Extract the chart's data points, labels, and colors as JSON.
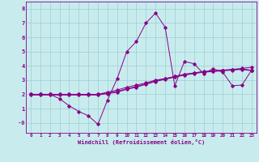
{
  "xlabel": "Windchill (Refroidissement éolien,°C)",
  "bg_color": "#c8ecee",
  "grid_color": "#9ecdd2",
  "line_color": "#880088",
  "xlim": [
    -0.5,
    23.5
  ],
  "ylim": [
    -0.7,
    8.5
  ],
  "xticks": [
    0,
    1,
    2,
    3,
    4,
    5,
    6,
    7,
    8,
    9,
    10,
    11,
    12,
    13,
    14,
    15,
    16,
    17,
    18,
    19,
    20,
    21,
    22,
    23
  ],
  "yticks": [
    0,
    1,
    2,
    3,
    4,
    5,
    6,
    7,
    8
  ],
  "ytick_labels": [
    "-0",
    "1",
    "2",
    "3",
    "4",
    "5",
    "6",
    "7",
    "8"
  ],
  "line4_x": [
    0,
    1,
    2,
    3,
    4,
    5,
    6,
    7,
    8,
    9,
    10,
    11,
    12,
    13,
    14,
    15,
    16,
    17,
    18,
    19,
    20,
    21,
    22,
    23
  ],
  "line4_y": [
    2.0,
    2.0,
    2.0,
    1.7,
    1.2,
    0.8,
    0.5,
    -0.1,
    1.6,
    3.1,
    5.0,
    5.7,
    7.0,
    7.7,
    6.7,
    2.6,
    4.3,
    4.15,
    3.45,
    3.8,
    3.55,
    2.6,
    2.65,
    3.7
  ],
  "line1_x": [
    0,
    1,
    2,
    3,
    4,
    5,
    6,
    7,
    8,
    9,
    10,
    11,
    12,
    13,
    14,
    15,
    16,
    17,
    18,
    19,
    20,
    21,
    22,
    23
  ],
  "line1_y": [
    2.0,
    2.0,
    2.0,
    2.0,
    2.0,
    2.0,
    2.0,
    2.0,
    2.15,
    2.3,
    2.5,
    2.65,
    2.8,
    3.0,
    3.1,
    3.25,
    3.4,
    3.5,
    3.6,
    3.65,
    3.7,
    3.75,
    3.82,
    3.9
  ],
  "line2_x": [
    0,
    1,
    2,
    3,
    4,
    5,
    6,
    7,
    8,
    9,
    10,
    11,
    12,
    13,
    14,
    15,
    16,
    17,
    18,
    19,
    20,
    21,
    22,
    23
  ],
  "line2_y": [
    2.0,
    2.0,
    2.0,
    2.0,
    2.0,
    2.0,
    2.0,
    2.0,
    2.1,
    2.2,
    2.4,
    2.55,
    2.75,
    2.95,
    3.1,
    3.25,
    3.4,
    3.5,
    3.58,
    3.63,
    3.68,
    3.73,
    3.78,
    3.7
  ],
  "line3_x": [
    0,
    1,
    2,
    3,
    4,
    5,
    6,
    7,
    8,
    9,
    10,
    11,
    12,
    13,
    14,
    15,
    16,
    17,
    18,
    19,
    20,
    21,
    22,
    23
  ],
  "line3_y": [
    1.95,
    1.95,
    1.95,
    1.95,
    1.95,
    1.95,
    1.95,
    1.95,
    2.05,
    2.15,
    2.35,
    2.5,
    2.7,
    2.9,
    3.05,
    3.2,
    3.35,
    3.45,
    3.55,
    3.6,
    3.65,
    3.7,
    3.75,
    3.65
  ]
}
